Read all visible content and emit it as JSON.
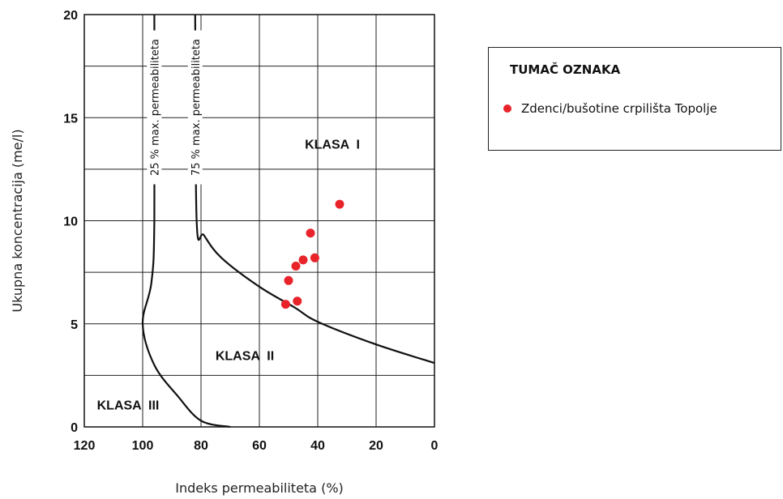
{
  "chart_data": {
    "type": "scatter",
    "xlabel": "Indeks permeabiliteta (%)",
    "ylabel": "Ukupna koncentracija (me/l)",
    "xlim": [
      120,
      0
    ],
    "ylim": [
      0,
      20
    ],
    "x_reversed": true,
    "xticks": [
      "120",
      "100",
      "80",
      "60",
      "40",
      "20",
      "0"
    ],
    "yticks": [
      "0",
      "5",
      "10",
      "15",
      "20"
    ],
    "grid": true,
    "series": [
      {
        "name": "Zdenci/bušotine crpilišta Topolje",
        "color": "#e8232a",
        "points": [
          {
            "x": 32.5,
            "y": 10.8
          },
          {
            "x": 42.5,
            "y": 9.4
          },
          {
            "x": 41.0,
            "y": 8.2
          },
          {
            "x": 45.0,
            "y": 8.1
          },
          {
            "x": 47.5,
            "y": 7.8
          },
          {
            "x": 50.0,
            "y": 7.1
          },
          {
            "x": 47.0,
            "y": 6.1
          },
          {
            "x": 51.0,
            "y": 5.95
          }
        ]
      }
    ],
    "reference_curves": [
      {
        "label": "25 % max. permeabiliteta",
        "points": [
          [
            96,
            20
          ],
          [
            96,
            10
          ],
          [
            97,
            7
          ],
          [
            100,
            5
          ],
          [
            96,
            3
          ],
          [
            88,
            1.5
          ],
          [
            80,
            0.3
          ],
          [
            70,
            0
          ]
        ]
      },
      {
        "label": "75 % max. permeabiliteta",
        "points": [
          [
            82,
            20
          ],
          [
            81.5,
            10
          ],
          [
            79,
            9.3
          ],
          [
            73,
            8.2
          ],
          [
            60,
            6.8
          ],
          [
            48,
            5.8
          ],
          [
            40,
            5.1
          ],
          [
            20,
            4.0
          ],
          [
            0,
            3.1
          ]
        ]
      }
    ],
    "regions": [
      "KLASA  I",
      "KLASA  II",
      "KLASA  III"
    ],
    "legend": {
      "title": "TUMAČ OZNAKA",
      "position": "right"
    }
  }
}
